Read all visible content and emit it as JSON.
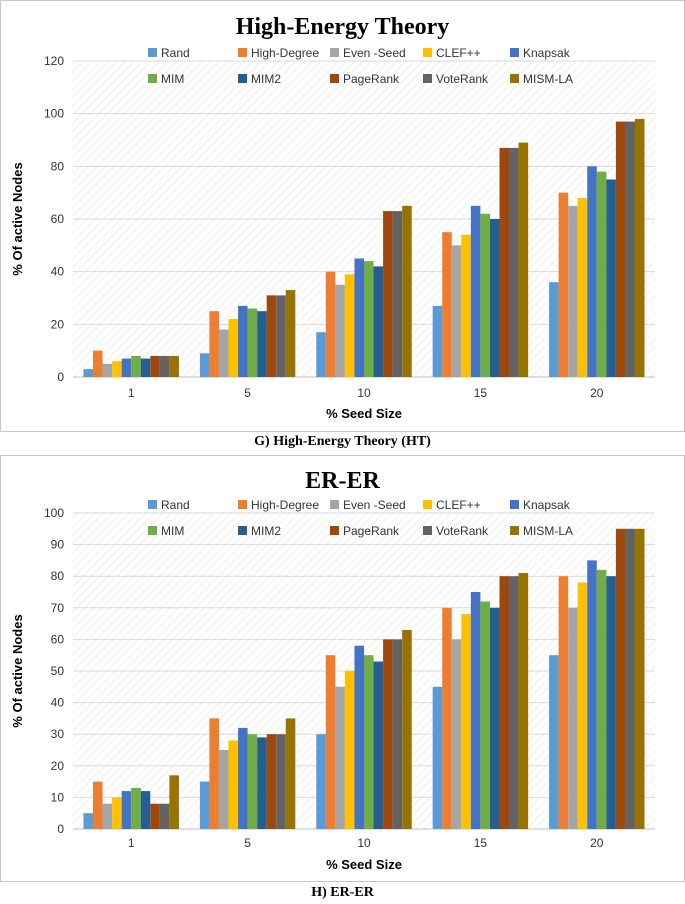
{
  "colors": {
    "series": [
      "#5B9BD5",
      "#ED7D31",
      "#A5A5A5",
      "#FFC000",
      "#4472C4",
      "#70AD47",
      "#255E91",
      "#9E480E",
      "#636363",
      "#997300"
    ],
    "border": "#c8c8c8",
    "grid": "#d9d9d9",
    "text": "#000000"
  },
  "chart_data": [
    {
      "type": "bar",
      "title": "High-Energy  Theory",
      "caption": "G) High-Energy Theory (HT)",
      "xlabel": "% Seed Size",
      "ylabel": "% Of active Nodes",
      "ylim": [
        0,
        120
      ],
      "yticks": [
        0,
        20,
        40,
        60,
        80,
        100,
        120
      ],
      "categories": [
        "1",
        "5",
        "10",
        "15",
        "20"
      ],
      "legend_position": "top",
      "grid": true,
      "series": [
        {
          "name": "Rand",
          "values": [
            3,
            9,
            17,
            27,
            36
          ]
        },
        {
          "name": "High-Degree",
          "values": [
            10,
            25,
            40,
            55,
            70
          ]
        },
        {
          "name": "Even -Seed",
          "values": [
            5,
            18,
            35,
            50,
            65
          ]
        },
        {
          "name": "CLEF++",
          "values": [
            6,
            22,
            39,
            54,
            68
          ]
        },
        {
          "name": "Knapsak",
          "values": [
            7,
            27,
            45,
            65,
            80
          ]
        },
        {
          "name": "MIM",
          "values": [
            8,
            26,
            44,
            62,
            78
          ]
        },
        {
          "name": "MIM2",
          "values": [
            7,
            25,
            42,
            60,
            75
          ]
        },
        {
          "name": "PageRank",
          "values": [
            8,
            31,
            63,
            87,
            97
          ]
        },
        {
          "name": "VoteRank",
          "values": [
            8,
            31,
            63,
            87,
            97
          ]
        },
        {
          "name": "MISM-LA",
          "values": [
            8,
            33,
            65,
            89,
            98
          ]
        }
      ]
    },
    {
      "type": "bar",
      "title": "ER-ER",
      "caption": "H) ER-ER",
      "xlabel": "% Seed Size",
      "ylabel": "% Of active Nodes",
      "ylim": [
        0,
        100
      ],
      "yticks": [
        0,
        10,
        20,
        30,
        40,
        50,
        60,
        70,
        80,
        90,
        100
      ],
      "categories": [
        "1",
        "5",
        "10",
        "15",
        "20"
      ],
      "legend_position": "top",
      "grid": true,
      "series": [
        {
          "name": "Rand",
          "values": [
            5,
            15,
            30,
            45,
            55
          ]
        },
        {
          "name": "High-Degree",
          "values": [
            15,
            35,
            55,
            70,
            80
          ]
        },
        {
          "name": "Even -Seed",
          "values": [
            8,
            25,
            45,
            60,
            70
          ]
        },
        {
          "name": "CLEF++",
          "values": [
            10,
            28,
            50,
            68,
            78
          ]
        },
        {
          "name": "Knapsak",
          "values": [
            12,
            32,
            58,
            75,
            85
          ]
        },
        {
          "name": "MIM",
          "values": [
            13,
            30,
            55,
            72,
            82
          ]
        },
        {
          "name": "MIM2",
          "values": [
            12,
            29,
            53,
            70,
            80
          ]
        },
        {
          "name": "PageRank",
          "values": [
            8,
            30,
            60,
            80,
            95
          ]
        },
        {
          "name": "VoteRank",
          "values": [
            8,
            30,
            60,
            80,
            95
          ]
        },
        {
          "name": "MISM-LA",
          "values": [
            17,
            35,
            63,
            81,
            95
          ]
        }
      ]
    }
  ]
}
